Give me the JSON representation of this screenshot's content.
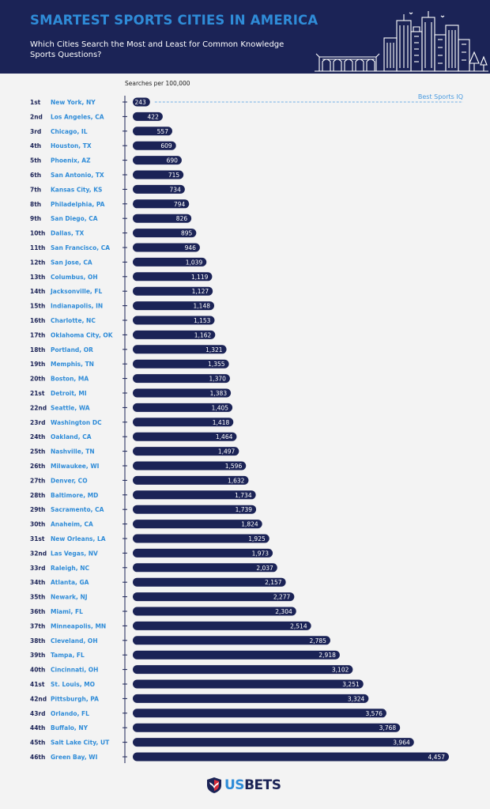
{
  "header": {
    "title": "SMARTEST SPORTS CITIES IN AMERICA",
    "subtitle": "Which Cities Search the Most and Least for Common Knowledge Sports Questions?"
  },
  "footer": {
    "logo_us": "US",
    "logo_bets": "BETS"
  },
  "colors": {
    "header_bg": "#1b2356",
    "title": "#2f8cd8",
    "bar": "#1b2356",
    "city_label": "#2f8cd8",
    "annotation": "#4a9be0"
  },
  "chart_data": {
    "type": "bar",
    "orientation": "horizontal",
    "title": "SMARTEST SPORTS CITIES IN AMERICA",
    "xlabel": "Searches per 100,000",
    "annotation": "Best Sports IQ",
    "xlim": [
      0,
      4550
    ],
    "ranks": [
      "1st",
      "2nd",
      "3rd",
      "4th",
      "5th",
      "6th",
      "7th",
      "8th",
      "9th",
      "10th",
      "11th",
      "12th",
      "13th",
      "14th",
      "15th",
      "16th",
      "17th",
      "18th",
      "19th",
      "20th",
      "21st",
      "22nd",
      "23rd",
      "24th",
      "25th",
      "26th",
      "27th",
      "28th",
      "29th",
      "30th",
      "31st",
      "32nd",
      "33rd",
      "34th",
      "35th",
      "36th",
      "37th",
      "38th",
      "39th",
      "40th",
      "41st",
      "42nd",
      "43rd",
      "44th",
      "45th",
      "46th"
    ],
    "categories": [
      "New York, NY",
      "Los Angeles, CA",
      "Chicago, IL",
      "Houston, TX",
      "Phoenix, AZ",
      "San Antonio, TX",
      "Kansas City, KS",
      "Philadelphia, PA",
      "San Diego, CA",
      "Dallas, TX",
      "San Francisco, CA",
      "San Jose, CA",
      "Columbus, OH",
      "Jacksonville, FL",
      "Indianapolis, IN",
      "Charlotte, NC",
      "Oklahoma City, OK",
      "Portland, OR",
      "Memphis, TN",
      "Boston, MA",
      "Detroit, MI",
      "Seattle, WA",
      "Washington DC",
      "Oakland, CA",
      "Nashville, TN",
      "Milwaukee, WI",
      "Denver, CO",
      "Baltimore, MD",
      "Sacramento, CA",
      "Anaheim, CA",
      "New Orleans, LA",
      "Las Vegas, NV",
      "Raleigh, NC",
      "Atlanta, GA",
      "Newark, NJ",
      "Miami, FL",
      "Minneapolis, MN",
      "Cleveland, OH",
      "Tampa, FL",
      "Cincinnati, OH",
      "St. Louis, MO",
      "Pittsburgh, PA",
      "Orlando, FL",
      "Buffalo, NY",
      "Salt Lake City, UT",
      "Green Bay, WI"
    ],
    "values": [
      243,
      422,
      557,
      609,
      690,
      715,
      734,
      794,
      826,
      895,
      946,
      1039,
      1119,
      1127,
      1148,
      1153,
      1162,
      1321,
      1355,
      1370,
      1383,
      1405,
      1418,
      1464,
      1497,
      1596,
      1632,
      1734,
      1739,
      1824,
      1925,
      1973,
      2037,
      2157,
      2277,
      2304,
      2514,
      2785,
      2918,
      3102,
      3251,
      3324,
      3576,
      3768,
      3964,
      4457
    ],
    "value_labels": [
      "243",
      "422",
      "557",
      "609",
      "690",
      "715",
      "734",
      "794",
      "826",
      "895",
      "946",
      "1,039",
      "1,119",
      "1,127",
      "1,148",
      "1,153",
      "1,162",
      "1,321",
      "1,355",
      "1,370",
      "1,383",
      "1,405",
      "1,418",
      "1,464",
      "1,497",
      "1,596",
      "1,632",
      "1,734",
      "1,739",
      "1,824",
      "1,925",
      "1,973",
      "2,037",
      "2,157",
      "2,277",
      "2,304",
      "2,514",
      "2,785",
      "2,918",
      "3,102",
      "3,251",
      "3,324",
      "3,576",
      "3,768",
      "3,964",
      "4,457"
    ]
  }
}
